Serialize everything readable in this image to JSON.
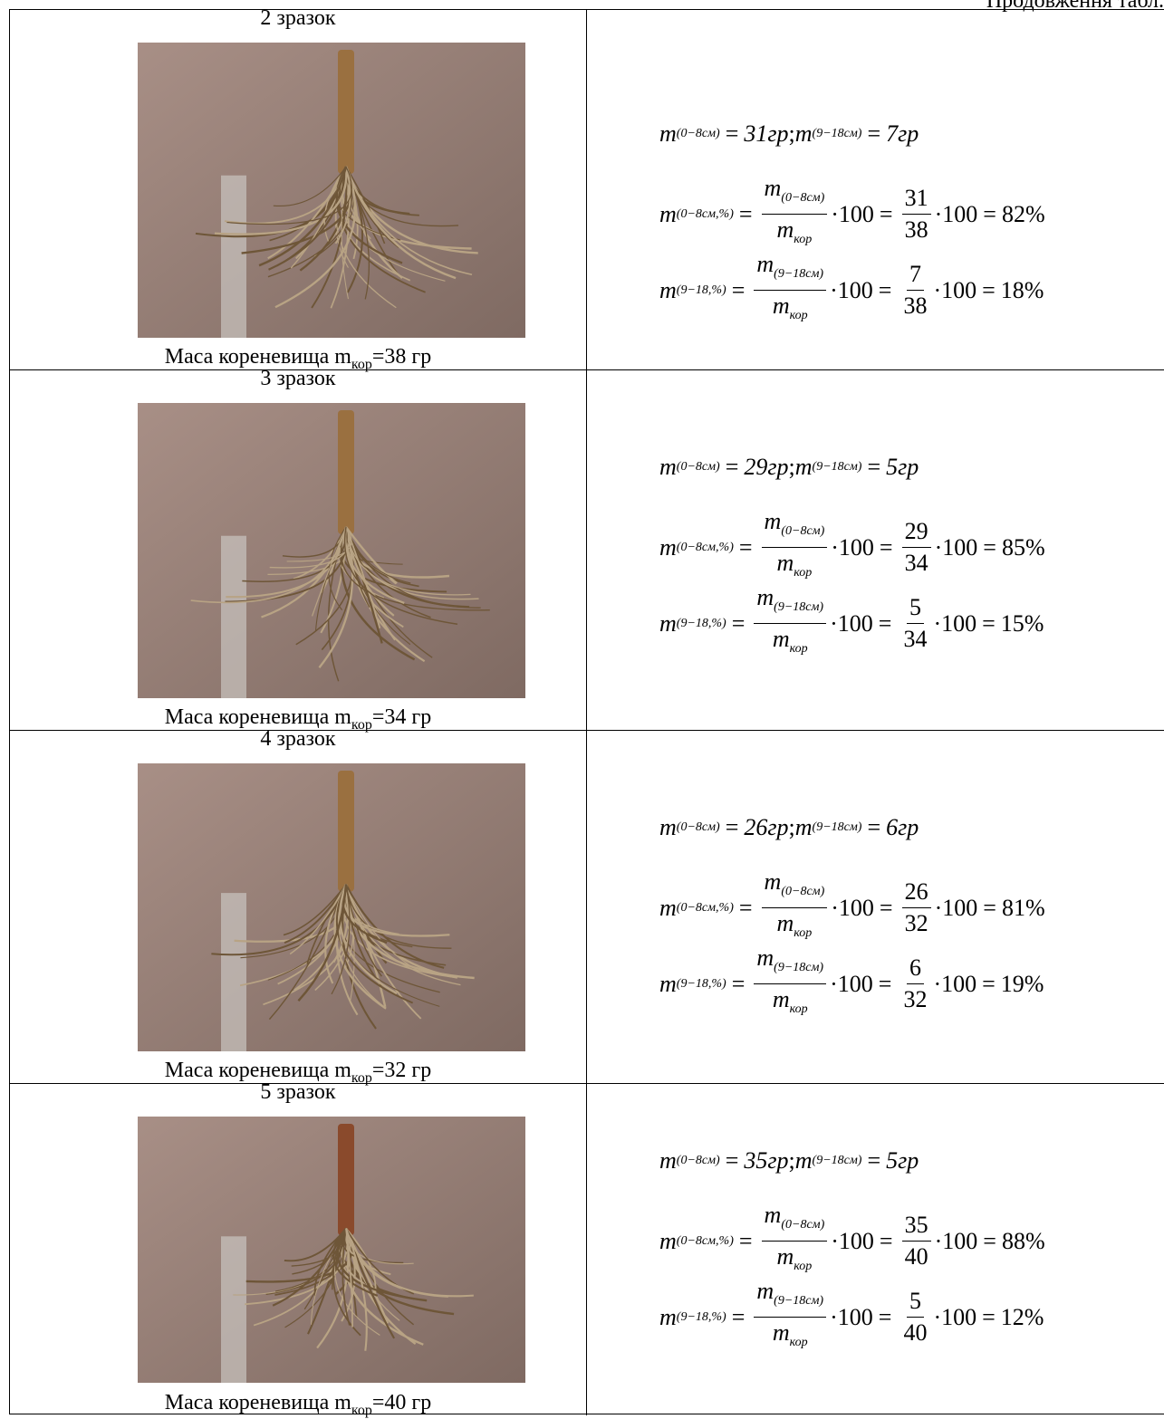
{
  "header": {
    "continuation": "Продовження табл."
  },
  "notation": {
    "m": "m",
    "sub_0_8": "(0−8см)",
    "sub_9_18": "(9−18см)",
    "sub_0_8_pct": "(0−8см,%)",
    "sub_9_18_pct": "(9−18,%)",
    "sub_kor": "кор",
    "times100": "·100",
    "eq": "=",
    "sep": ";"
  },
  "table": {
    "rows": [
      {
        "sample": "2 зразок",
        "caption": "Маса кореневища m",
        "caption_sub": "кор",
        "caption_value": "=38 гр",
        "m_0_8": "31гр",
        "m_9_18": "7гр",
        "num1": "31",
        "num2": "7",
        "den": "38",
        "pct1": "82%",
        "pct2": "18%"
      },
      {
        "sample": "3 зразок",
        "caption": "Маса кореневища m",
        "caption_sub": "кор",
        "caption_value": "=34 гр",
        "m_0_8": "29гр",
        "m_9_18": "5гр",
        "num1": "29",
        "num2": "5",
        "den": "34",
        "pct1": "85%",
        "pct2": "15%"
      },
      {
        "sample": "4 зразок",
        "caption": "Маса кореневища m",
        "caption_sub": "кор",
        "caption_value": "=32 гр",
        "m_0_8": "26гр",
        "m_9_18": "6гр",
        "num1": "26",
        "num2": "6",
        "den": "32",
        "pct1": "81%",
        "pct2": "19%"
      },
      {
        "sample": "5 зразок",
        "caption": "Маса кореневища m",
        "caption_sub": "кор",
        "caption_value": "=40 гр",
        "m_0_8": "35гр",
        "m_9_18": "5гр",
        "num1": "35",
        "num2": "5",
        "den": "40",
        "pct1": "88%",
        "pct2": "12%"
      }
    ]
  }
}
